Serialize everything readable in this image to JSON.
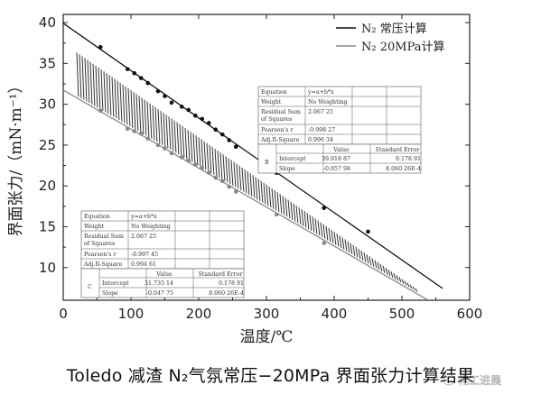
{
  "chart_data": {
    "type": "scatter",
    "caption": "Toledo 减渣 N₂气氛常压−20MPa 界面张力计算结果",
    "xlabel": "温度/℃",
    "ylabel": "界面张力/（mN·m⁻¹）",
    "xlim": [
      0,
      600
    ],
    "ylim": [
      6,
      41
    ],
    "x_ticks": [
      0,
      100,
      200,
      300,
      400,
      500,
      600
    ],
    "y_ticks": [
      10,
      15,
      20,
      25,
      30,
      35,
      40
    ],
    "legend_position": "top-right",
    "series": [
      {
        "name": "N₂ 常压计算",
        "color": "#111111",
        "fit": {
          "intercept": 39.91887,
          "slope": -0.05798
        },
        "x": [
          55,
          95,
          105,
          115,
          125,
          140,
          150,
          160,
          175,
          185,
          195,
          205,
          215,
          225,
          235,
          245,
          255,
          315,
          385,
          450
        ],
        "y": [
          37.0,
          34.3,
          33.8,
          33.2,
          32.6,
          31.6,
          31.0,
          30.2,
          29.7,
          29.3,
          28.6,
          28.2,
          27.7,
          26.9,
          26.3,
          25.6,
          24.8,
          21.6,
          17.3,
          14.4
        ]
      },
      {
        "name": "N₂ 20MPa计算",
        "color": "#888888",
        "fit": {
          "intercept": 31.73514,
          "slope": -0.04775
        },
        "x": [
          55,
          95,
          105,
          115,
          125,
          140,
          150,
          160,
          175,
          185,
          195,
          205,
          215,
          225,
          235,
          245,
          255,
          315,
          385
        ],
        "y": [
          29.2,
          27.0,
          26.7,
          26.4,
          25.8,
          25.0,
          24.6,
          24.0,
          23.5,
          23.1,
          22.6,
          22.2,
          21.6,
          21.0,
          20.6,
          19.9,
          19.3,
          16.5,
          13.0
        ]
      }
    ],
    "band": {
      "upper_fit": {
        "intercept": 37.5,
        "slope": -0.0578
      },
      "lower_fit": {
        "intercept": 31.9,
        "slope": -0.0478
      },
      "x_range": [
        20,
        520
      ]
    },
    "stats_tables": [
      {
        "id": "B",
        "rows": [
          [
            "Equation",
            "y=a+b*x"
          ],
          [
            "Weight",
            "No Weighting"
          ],
          [
            "Residual Sum of Squares",
            "2.067 25"
          ],
          [
            "Pearson's r",
            "-0.998 27"
          ],
          [
            "Adj.R-Square",
            "0.996 34"
          ]
        ],
        "param_header": [
          "",
          "Value",
          "Standard Error"
        ],
        "params": [
          [
            "Intercept",
            "39.918 87",
            "0.178 91"
          ],
          [
            "Slope",
            "-0.057 98",
            "8.060 26E-4"
          ]
        ]
      },
      {
        "id": "C",
        "rows": [
          [
            "Equation",
            "y=a+b*x"
          ],
          [
            "Weight",
            "No Weighting"
          ],
          [
            "Residual Sum of Squares",
            "2.067 25"
          ],
          [
            "Pearson's r",
            "-0.997 45"
          ],
          [
            "Adj.R-Square",
            "0.994 61"
          ]
        ],
        "param_header": [
          "",
          "Value",
          "Standard Error"
        ],
        "params": [
          [
            "Intercept",
            "31.735 14",
            "0.178 91"
          ],
          [
            "Slope",
            "-0.047 75",
            "8.060 26E-4"
          ]
        ]
      }
    ],
    "watermark": "化工进展"
  }
}
